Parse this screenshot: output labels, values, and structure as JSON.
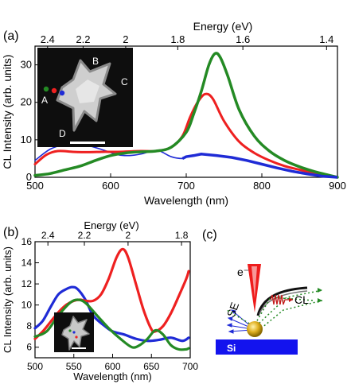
{
  "panels": {
    "a": "(a)",
    "b": "(b)",
    "c": "(c)"
  },
  "colors": {
    "blue": "#1f2bd6",
    "red": "#ee2020",
    "green": "#248a24",
    "si_blue": "#1313ee",
    "gold": "#e0b020"
  },
  "schematic": {
    "electron_label": "e⁻",
    "se_label": "SE",
    "cl_label": "CL",
    "substrate_label": "Si"
  },
  "inset_a_labels": [
    "A",
    "B",
    "C",
    "D"
  ],
  "chart_data": [
    {
      "id": "a",
      "type": "line",
      "xlabel": "Wavelength (nm)",
      "ylabel": "CL Intensity (arb. units)",
      "top_axis_label": "Energy (eV)",
      "xlim": [
        500,
        900
      ],
      "ylim": [
        0,
        35
      ],
      "xticks": [
        500,
        600,
        700,
        800,
        900
      ],
      "yticks": [
        0,
        10,
        20,
        30
      ],
      "top_ticks": [
        {
          "label": "2.4",
          "wavelength": 516.6
        },
        {
          "label": "2.2",
          "wavelength": 563.6
        },
        {
          "label": "2",
          "wavelength": 619.9
        },
        {
          "label": "1.8",
          "wavelength": 688.8
        },
        {
          "label": "1.6",
          "wavelength": 774.9
        },
        {
          "label": "1.4",
          "wavelength": 885.6
        }
      ],
      "grid": false,
      "series": [
        {
          "color": "#1f2bd6",
          "x": [
            500,
            520,
            540,
            555,
            570,
            590,
            610,
            625,
            640,
            655,
            665,
            680,
            695,
            700,
            710,
            720,
            740,
            760,
            780,
            800,
            820,
            840,
            860,
            880,
            900
          ],
          "y": [
            4.5,
            7.5,
            8.8,
            9.0,
            8.5,
            7.3,
            6.0,
            5.8,
            6.2,
            7.0,
            7.0,
            5.5,
            5.0,
            5.5,
            5.8,
            6.2,
            5.8,
            5.3,
            4.5,
            3.5,
            2.5,
            1.6,
            0.9,
            0.3,
            0.0
          ]
        },
        {
          "color": "#ee2020",
          "x": [
            500,
            515,
            530,
            550,
            570,
            590,
            610,
            640,
            660,
            680,
            695,
            705,
            715,
            725,
            735,
            750,
            770,
            790,
            810,
            830,
            850,
            870,
            890,
            900
          ],
          "y": [
            3.5,
            6.0,
            7.0,
            6.8,
            6.7,
            6.8,
            6.8,
            7.0,
            7.0,
            8.0,
            11.0,
            16.0,
            20.0,
            22.2,
            21.0,
            15.0,
            9.5,
            6.5,
            4.5,
            3.0,
            2.0,
            1.0,
            0.3,
            0.0
          ]
        },
        {
          "color": "#248a24",
          "x": [
            500,
            520,
            540,
            560,
            580,
            600,
            620,
            640,
            660,
            680,
            700,
            710,
            720,
            730,
            738,
            745,
            755,
            770,
            790,
            810,
            830,
            850,
            870,
            890,
            900
          ],
          "y": [
            0.5,
            1.0,
            2.0,
            3.0,
            4.5,
            5.8,
            6.5,
            6.8,
            7.0,
            8.0,
            12.0,
            17.0,
            23.0,
            30.0,
            33.0,
            32.0,
            27.0,
            18.0,
            11.0,
            7.0,
            4.5,
            2.8,
            1.5,
            0.5,
            0.0
          ]
        }
      ]
    },
    {
      "id": "b",
      "type": "line",
      "xlabel": "Wavelength (nm)",
      "ylabel": "CL Intensity (arb. units)",
      "top_axis_label": "Energy (eV)",
      "xlim": [
        500,
        700
      ],
      "ylim": [
        5,
        16
      ],
      "xticks": [
        500,
        550,
        600,
        650,
        700
      ],
      "yticks": [
        6,
        8,
        10,
        12,
        14,
        16
      ],
      "top_ticks": [
        {
          "label": "2.4",
          "wavelength": 516.6
        },
        {
          "label": "2.2",
          "wavelength": 563.6
        },
        {
          "label": "2",
          "wavelength": 619.9
        },
        {
          "label": "1.8",
          "wavelength": 688.8
        }
      ],
      "grid": false,
      "series": [
        {
          "color": "#1f2bd6",
          "x": [
            500,
            510,
            520,
            530,
            540,
            548,
            555,
            565,
            575,
            590,
            600,
            615,
            630,
            645,
            660,
            675,
            690,
            698
          ],
          "y": [
            7.8,
            8.5,
            9.8,
            11.0,
            11.5,
            11.7,
            11.5,
            10.5,
            9.0,
            8.0,
            7.5,
            7.2,
            6.8,
            6.6,
            6.7,
            6.9,
            6.6,
            6.9
          ]
        },
        {
          "color": "#ee2020",
          "x": [
            500,
            510,
            520,
            530,
            540,
            550,
            558,
            565,
            575,
            585,
            595,
            605,
            613,
            620,
            630,
            640,
            650,
            655,
            665,
            675,
            685,
            695,
            698
          ],
          "y": [
            6.8,
            7.5,
            8.4,
            9.3,
            10.0,
            10.4,
            10.5,
            10.4,
            10.4,
            11.0,
            12.5,
            14.5,
            15.3,
            14.5,
            12.0,
            9.5,
            7.7,
            7.5,
            8.0,
            9.2,
            10.8,
            12.5,
            13.2
          ]
        },
        {
          "color": "#248a24",
          "x": [
            500,
            515,
            530,
            545,
            555,
            565,
            580,
            595,
            610,
            625,
            635,
            645,
            655,
            665,
            675,
            685,
            695,
            698
          ],
          "y": [
            7.0,
            7.5,
            9.0,
            10.2,
            10.5,
            10.2,
            9.0,
            7.8,
            6.8,
            6.0,
            6.2,
            6.8,
            7.6,
            7.2,
            6.2,
            5.8,
            5.8,
            5.9
          ]
        }
      ]
    }
  ]
}
